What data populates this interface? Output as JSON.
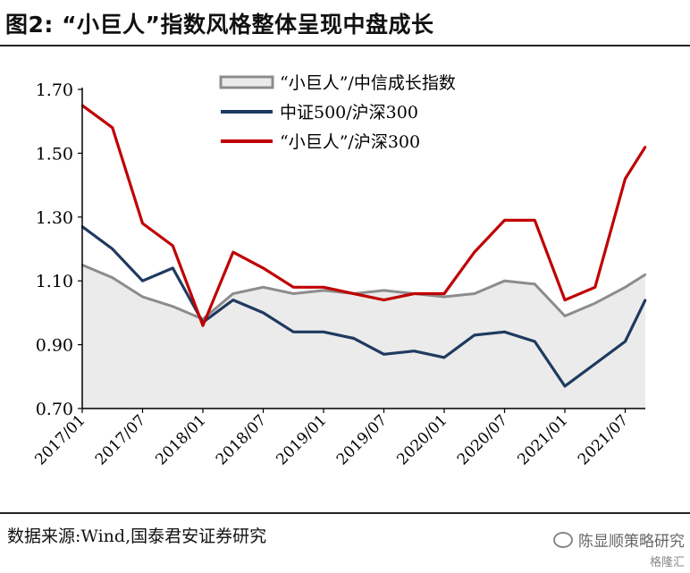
{
  "header": {
    "title": "图2:  “小巨人”指数风格整体呈现中盘成长"
  },
  "footer": {
    "source": "数据来源:Wind,国泰君安证券研究"
  },
  "watermark": {
    "line1": "陈显顺策略研究",
    "line2": "格隆汇",
    "icon": "wechat-icon"
  },
  "chart_data": {
    "type": "line",
    "title": "",
    "xlabel": "",
    "ylabel": "",
    "ylim": [
      0.7,
      1.7
    ],
    "yticks": [
      "0.70",
      "0.90",
      "1.10",
      "1.30",
      "1.50",
      "1.70"
    ],
    "xticks": [
      "2017/01",
      "2017/07",
      "2018/01",
      "2018/07",
      "2019/01",
      "2019/07",
      "2020/01",
      "2020/07",
      "2021/01",
      "2021/07"
    ],
    "grid": false,
    "legend_position": "top-right",
    "x": [
      "2017/01",
      "2017/04",
      "2017/07",
      "2017/10",
      "2018/01",
      "2018/04",
      "2018/07",
      "2018/10",
      "2019/01",
      "2019/04",
      "2019/07",
      "2019/10",
      "2020/01",
      "2020/04",
      "2020/07",
      "2020/10",
      "2021/01",
      "2021/04",
      "2021/07",
      "2021/09"
    ],
    "series": [
      {
        "name": "“小巨人”/中信成长指数",
        "style": "area",
        "color": "#8c8c8c",
        "fill": "#ebebeb",
        "values": [
          1.15,
          1.11,
          1.05,
          1.02,
          0.98,
          1.06,
          1.08,
          1.06,
          1.07,
          1.06,
          1.07,
          1.06,
          1.05,
          1.06,
          1.1,
          1.09,
          0.99,
          1.03,
          1.08,
          1.12
        ]
      },
      {
        "name": "中证500/沪深300",
        "style": "line",
        "color": "#1f3a5f",
        "values": [
          1.27,
          1.2,
          1.1,
          1.14,
          0.97,
          1.04,
          1.0,
          0.94,
          0.94,
          0.92,
          0.87,
          0.88,
          0.86,
          0.93,
          0.94,
          0.91,
          0.77,
          0.84,
          0.91,
          1.04
        ]
      },
      {
        "name": "“小巨人”/沪深300",
        "style": "line",
        "color": "#c00000",
        "values": [
          1.65,
          1.58,
          1.28,
          1.21,
          0.96,
          1.19,
          1.14,
          1.08,
          1.08,
          1.06,
          1.04,
          1.06,
          1.06,
          1.19,
          1.29,
          1.29,
          1.04,
          1.08,
          1.42,
          1.52
        ]
      }
    ]
  }
}
